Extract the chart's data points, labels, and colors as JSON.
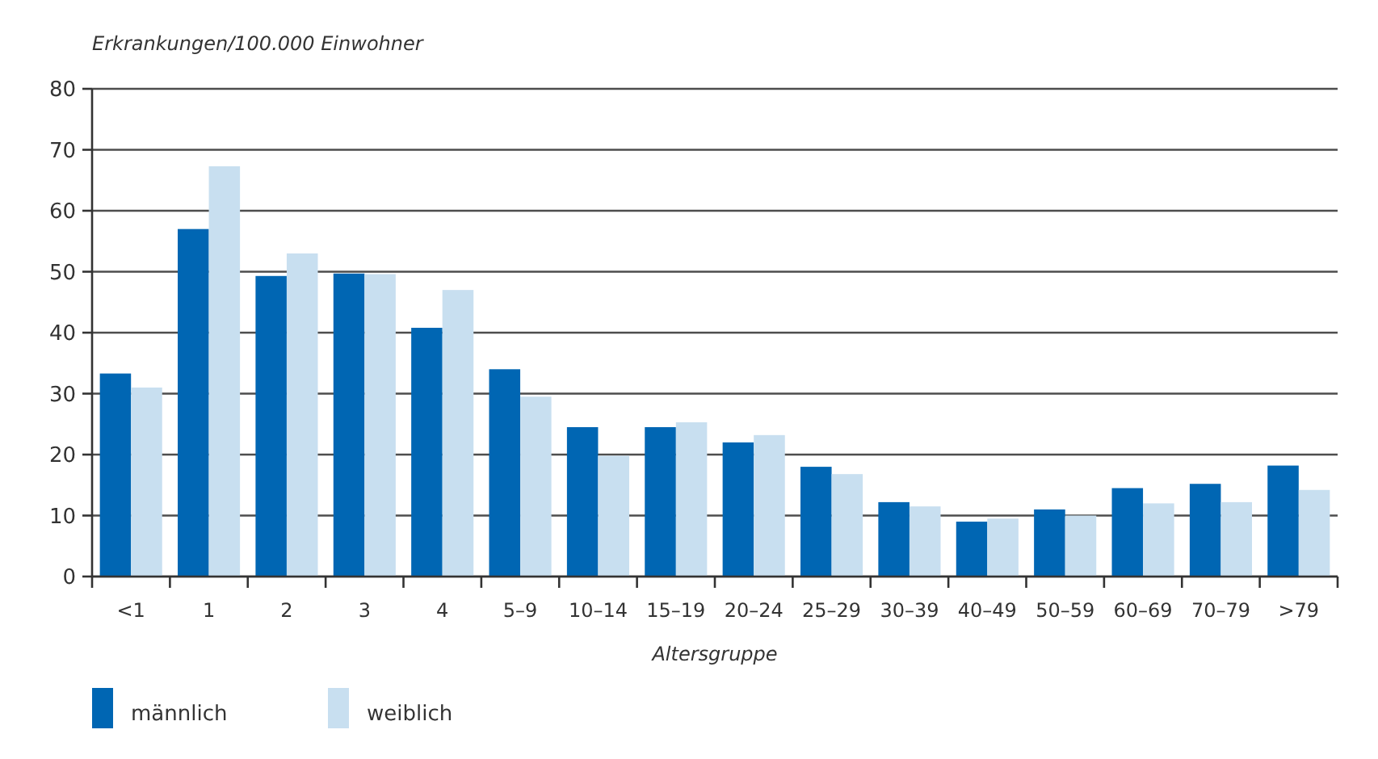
{
  "chart_data": {
    "type": "bar",
    "ylabel": "Erkrankungen/100.000 Einwohner",
    "xlabel": "Altersgruppe",
    "categories": [
      "<1",
      "1",
      "2",
      "3",
      "4",
      "5–9",
      "10–14",
      "15–19",
      "20–24",
      "25–29",
      "30–39",
      "40–49",
      "50–59",
      "60–69",
      "70–79",
      ">79"
    ],
    "series": [
      {
        "name": "männlich",
        "color": "#0066b3",
        "values": [
          33.3,
          57,
          49.3,
          49.7,
          40.8,
          34,
          24.5,
          24.5,
          22,
          18,
          12.2,
          9,
          11,
          14.5,
          15.2,
          18.2
        ]
      },
      {
        "name": "weiblich",
        "color": "#c8dff0",
        "values": [
          31,
          67.3,
          53,
          49.6,
          47,
          29.5,
          19.8,
          25.3,
          23.2,
          16.8,
          11.5,
          9.5,
          10,
          12,
          12.2,
          14.2
        ]
      }
    ],
    "ylim": [
      0,
      80
    ],
    "yticks": [
      0,
      10,
      20,
      30,
      40,
      50,
      60,
      70,
      80
    ],
    "grid": "y",
    "legend": "bottom left"
  }
}
